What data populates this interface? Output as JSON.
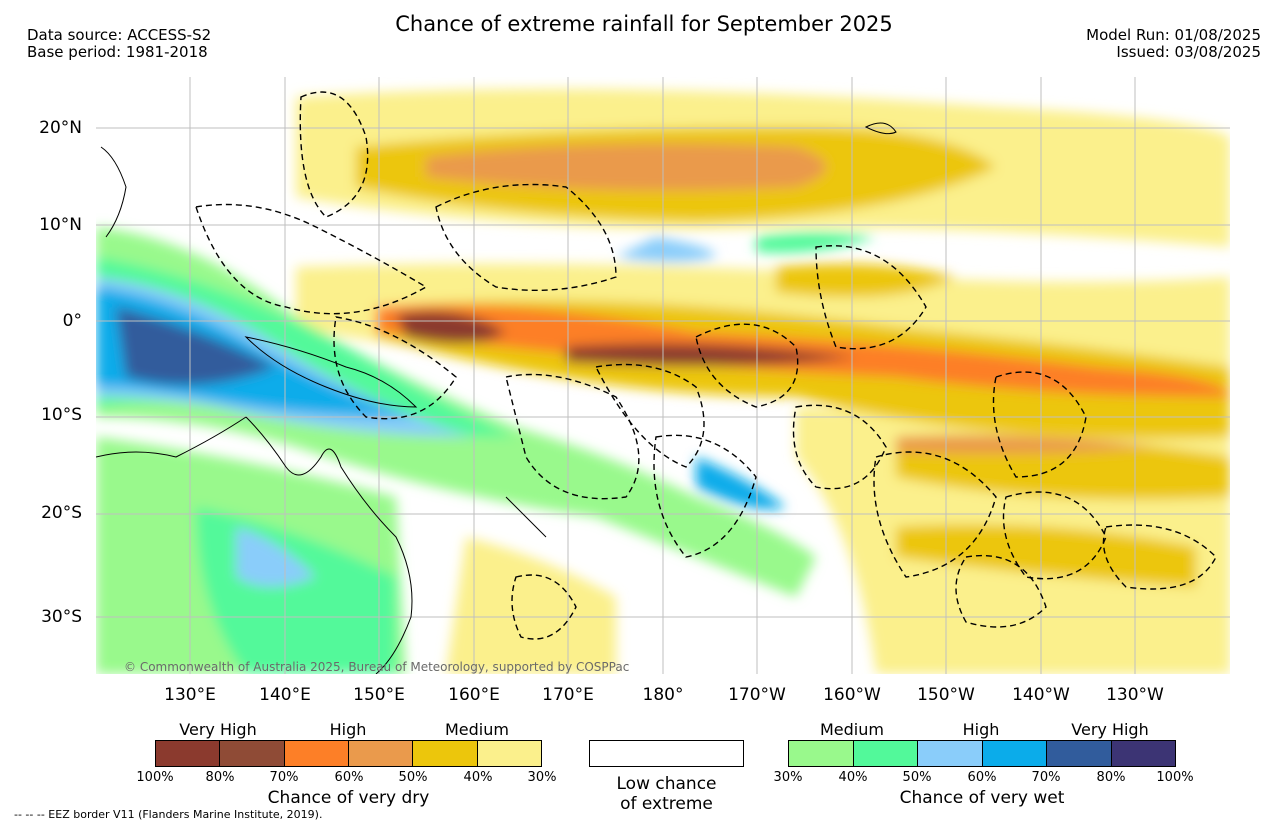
{
  "header": {
    "title": "Chance of extreme rainfall for September 2025",
    "data_source": "Data source: ACCESS-S2",
    "base_period": "Base period: 1981-2018",
    "model_run": "Model Run: 01/08/2025",
    "issued": "Issued: 03/08/2025"
  },
  "map": {
    "copyright": "© Commonwealth of Australia 2025, Bureau of Meteorology, supported by COSPPac",
    "lat_labels": [
      "20°N",
      "10°N",
      "0°",
      "10°S",
      "20°S",
      "30°S"
    ],
    "lon_labels": [
      "130°E",
      "140°E",
      "150°E",
      "160°E",
      "170°E",
      "180°",
      "170°W",
      "160°W",
      "150°W",
      "140°W",
      "130°W"
    ]
  },
  "legend": {
    "dry": {
      "heads": [
        "Very High",
        "High",
        "Medium"
      ],
      "ticks": [
        "100%",
        "80%",
        "70%",
        "60%",
        "50%",
        "40%",
        "30%"
      ],
      "title": "Chance of very dry",
      "colors": [
        "#8b3a2e",
        "#8f4b36",
        "#fd7f27",
        "#ea9a4c",
        "#ecc60c",
        "#fbf08c"
      ]
    },
    "low": {
      "line1": "Low chance",
      "line2": "of extreme"
    },
    "wet": {
      "heads": [
        "Medium",
        "High",
        "Very High"
      ],
      "ticks": [
        "30%",
        "40%",
        "50%",
        "60%",
        "70%",
        "80%",
        "100%"
      ],
      "title": "Chance of very wet",
      "colors": [
        "#99f98c",
        "#52f99a",
        "#8acdfa",
        "#0bacea",
        "#315c9c",
        "#3c3474"
      ]
    }
  },
  "footnote": "-- -- -- EEZ border V11 (Flanders Marine Institute, 2019)."
}
